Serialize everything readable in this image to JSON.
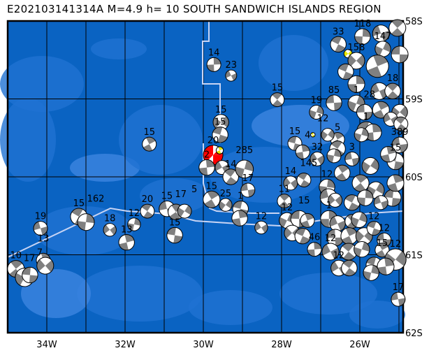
{
  "title": "E202103141314A M=4.9 h=  10 SOUTH SANDWICH ISLANDS REGION",
  "map": {
    "lon_range": [
      -35,
      -24.9
    ],
    "lat_range": [
      -62,
      -58
    ],
    "lon_ticks": [
      {
        "lon": -34,
        "label": "34W"
      },
      {
        "lon": -32,
        "label": "32W"
      },
      {
        "lon": -30,
        "label": "30W"
      },
      {
        "lon": -28,
        "label": "28W"
      },
      {
        "lon": -26,
        "label": "26W"
      }
    ],
    "lat_ticks": [
      {
        "lat": -58,
        "label": "58S"
      },
      {
        "lat": -59,
        "label": "59S"
      },
      {
        "lat": -60,
        "label": "60S"
      },
      {
        "lat": -61,
        "label": "61S"
      },
      {
        "lat": -62,
        "label": "62S"
      }
    ],
    "grid_lons": [
      -34,
      -33,
      -32,
      -31,
      -30,
      -29,
      -28,
      -27,
      -26,
      -25
    ],
    "grid_lats": [
      -59,
      -60,
      -61
    ],
    "colors": {
      "ocean": "#0a63c2",
      "ocean_mid": "#1f72d2",
      "ocean_light": "#3c84e0",
      "plate_boundary": "#c8d4f4",
      "compression": "#808080",
      "main_event": "#ff0000",
      "highlight": "#e6e600"
    }
  },
  "events": [
    {
      "lon": -29.75,
      "lat": -59.72,
      "mag": 6.5,
      "label": "20",
      "type": "main"
    },
    {
      "lon": -29.58,
      "lat": -59.66,
      "mag": 4.3,
      "label": "",
      "type": "highlight"
    },
    {
      "lon": -26.3,
      "lat": -58.42,
      "mag": 4.5,
      "label": "",
      "type": "highlight"
    },
    {
      "lon": -27.2,
      "lat": -59.46,
      "mag": 3.8,
      "label": "",
      "type": "highlight"
    },
    {
      "lon": -29.73,
      "lat": -58.56,
      "mag": 5.5,
      "label": "14"
    },
    {
      "lon": -29.29,
      "lat": -58.7,
      "mag": 5.0,
      "label": "23"
    },
    {
      "lon": -28.11,
      "lat": -59.01,
      "mag": 5.5,
      "label": "15"
    },
    {
      "lon": -27.11,
      "lat": -59.17,
      "mag": 5.5,
      "label": "19"
    },
    {
      "lon": -26.66,
      "lat": -59.05,
      "mag": 5.8,
      "label": "85"
    },
    {
      "lon": -31.38,
      "lat": -59.58,
      "mag": 5.5,
      "label": "15"
    },
    {
      "lon": -29.55,
      "lat": -59.3,
      "mag": 5.8,
      "label": "15"
    },
    {
      "lon": -29.57,
      "lat": -59.46,
      "mag": 5.8,
      "label": "15"
    },
    {
      "lon": -29.91,
      "lat": -59.88,
      "mag": 5.8,
      "label": "2"
    },
    {
      "lon": -29.52,
      "lat": -59.88,
      "mag": 5.5,
      "label": ""
    },
    {
      "lon": -29.3,
      "lat": -60.0,
      "mag": 5.8,
      "label": "14"
    },
    {
      "lon": -28.95,
      "lat": -59.9,
      "mag": 6.2,
      "label": "285"
    },
    {
      "lon": -28.86,
      "lat": -60.17,
      "mag": 5.5,
      "label": "17"
    },
    {
      "lon": -29.79,
      "lat": -60.29,
      "mag": 6.0,
      "label": "15"
    },
    {
      "lon": -29.43,
      "lat": -60.36,
      "mag": 5.3,
      "label": "25"
    },
    {
      "lon": -29.05,
      "lat": -60.41,
      "mag": 5.8,
      "label": "1"
    },
    {
      "lon": -29.07,
      "lat": -60.53,
      "mag": 5.8,
      "label": ""
    },
    {
      "lon": -28.52,
      "lat": -60.65,
      "mag": 5.3,
      "label": "12"
    },
    {
      "lon": -31.43,
      "lat": -60.44,
      "mag": 5.5,
      "label": "20"
    },
    {
      "lon": -31.77,
      "lat": -60.61,
      "mag": 5.3,
      "label": "12"
    },
    {
      "lon": -30.93,
      "lat": -60.41,
      "mag": 5.8,
      "label": "15"
    },
    {
      "lon": -30.7,
      "lat": -60.45,
      "mag": 5.8,
      "label": "17"
    },
    {
      "lon": -30.48,
      "lat": -60.44,
      "mag": 5.5,
      "label": "5"
    },
    {
      "lon": -30.73,
      "lat": -60.75,
      "mag": 5.8,
      "label": "15"
    },
    {
      "lon": -31.96,
      "lat": -60.84,
      "mag": 5.8,
      "label": "13"
    },
    {
      "lon": -32.39,
      "lat": -60.68,
      "mag": 5.3,
      "label": "18"
    },
    {
      "lon": -33.18,
      "lat": -60.51,
      "mag": 6.0,
      "label": "15"
    },
    {
      "lon": -33.0,
      "lat": -60.58,
      "mag": 6.0,
      "label": "162"
    },
    {
      "lon": -34.16,
      "lat": -60.66,
      "mag": 5.5,
      "label": "19"
    },
    {
      "lon": -34.79,
      "lat": -61.18,
      "mag": 6.0,
      "label": "10"
    },
    {
      "lon": -34.57,
      "lat": -61.29,
      "mag": 6.3,
      "label": "17"
    },
    {
      "lon": -34.43,
      "lat": -61.26,
      "mag": 5.8,
      "label": "7"
    },
    {
      "lon": -34.09,
      "lat": -61.07,
      "mag": 5.5,
      "label": "13"
    },
    {
      "lon": -34.04,
      "lat": -61.14,
      "mag": 6.0,
      "label": ""
    },
    {
      "lon": -26.55,
      "lat": -58.3,
      "mag": 5.8,
      "label": "33"
    },
    {
      "lon": -25.93,
      "lat": -58.2,
      "mag": 5.8,
      "label": "118"
    },
    {
      "lon": -25.46,
      "lat": -58.16,
      "mag": 6.0,
      "label": ""
    },
    {
      "lon": -25.04,
      "lat": -58.09,
      "mag": 6.0,
      "label": ""
    },
    {
      "lon": -25.41,
      "lat": -58.36,
      "mag": 5.8,
      "label": "147"
    },
    {
      "lon": -24.98,
      "lat": -58.43,
      "mag": 6.0,
      "label": ""
    },
    {
      "lon": -25.55,
      "lat": -58.58,
      "mag": 7.0,
      "label": ""
    },
    {
      "lon": -26.09,
      "lat": -58.51,
      "mag": 6.0,
      "label": "158"
    },
    {
      "lon": -26.36,
      "lat": -58.65,
      "mag": 5.8,
      "label": ""
    },
    {
      "lon": -26.09,
      "lat": -58.81,
      "mag": 6.0,
      "label": ""
    },
    {
      "lon": -25.5,
      "lat": -58.9,
      "mag": 6.0,
      "label": ""
    },
    {
      "lon": -25.16,
      "lat": -58.9,
      "mag": 5.8,
      "label": "18"
    },
    {
      "lon": -26.09,
      "lat": -59.06,
      "mag": 6.0,
      "label": "1"
    },
    {
      "lon": -25.88,
      "lat": -59.17,
      "mag": 5.8,
      "label": "28"
    },
    {
      "lon": -25.46,
      "lat": -59.14,
      "mag": 6.0,
      "label": ""
    },
    {
      "lon": -24.98,
      "lat": -59.17,
      "mag": 5.8,
      "label": ""
    },
    {
      "lon": -25.84,
      "lat": -59.41,
      "mag": 6.3,
      "label": "1"
    },
    {
      "lon": -25.66,
      "lat": -59.43,
      "mag": 6.0,
      "label": ""
    },
    {
      "lon": -25.21,
      "lat": -59.26,
      "mag": 5.5,
      "label": ""
    },
    {
      "lon": -24.95,
      "lat": -59.32,
      "mag": 5.5,
      "label": ""
    },
    {
      "lon": -25.96,
      "lat": -59.46,
      "mag": 5.5,
      "label": ""
    },
    {
      "lon": -24.98,
      "lat": -59.59,
      "mag": 5.8,
      "label": "389"
    },
    {
      "lon": -26.57,
      "lat": -59.52,
      "mag": 5.5,
      "label": "5"
    },
    {
      "lon": -26.82,
      "lat": -59.46,
      "mag": 5.3,
      "label": "12"
    },
    {
      "lon": -27.66,
      "lat": -59.57,
      "mag": 5.5,
      "label": "15"
    },
    {
      "lon": -27.46,
      "lat": -59.68,
      "mag": 5.5,
      "label": "4"
    },
    {
      "lon": -27.09,
      "lat": -59.77,
      "mag": 5.5,
      "label": "32"
    },
    {
      "lon": -26.57,
      "lat": -59.64,
      "mag": 5.8,
      "label": ""
    },
    {
      "lon": -26.66,
      "lat": -59.73,
      "mag": 5.5,
      "label": ""
    },
    {
      "lon": -26.2,
      "lat": -59.77,
      "mag": 5.5,
      "label": "3"
    },
    {
      "lon": -26.45,
      "lat": -59.95,
      "mag": 5.8,
      "label": ""
    },
    {
      "lon": -25.73,
      "lat": -59.86,
      "mag": 6.0,
      "label": ""
    },
    {
      "lon": -25.09,
      "lat": -59.8,
      "mag": 6.0,
      "label": "15"
    },
    {
      "lon": -25.27,
      "lat": -59.71,
      "mag": 5.8,
      "label": ""
    },
    {
      "lon": -27.77,
      "lat": -60.08,
      "mag": 5.5,
      "label": "14"
    },
    {
      "lon": -27.43,
      "lat": -60.04,
      "mag": 5.5,
      "label": "145"
    },
    {
      "lon": -26.84,
      "lat": -60.13,
      "mag": 5.8,
      "label": "12"
    },
    {
      "lon": -26.8,
      "lat": -60.26,
      "mag": 6.0,
      "label": ""
    },
    {
      "lon": -25.98,
      "lat": -60.08,
      "mag": 6.0,
      "label": ""
    },
    {
      "lon": -25.59,
      "lat": -60.17,
      "mag": 6.0,
      "label": ""
    },
    {
      "lon": -25.16,
      "lat": -60.27,
      "mag": 6.0,
      "label": ""
    },
    {
      "lon": -25.09,
      "lat": -60.08,
      "mag": 6.0,
      "label": ""
    },
    {
      "lon": -26.63,
      "lat": -60.3,
      "mag": 5.5,
      "label": ""
    },
    {
      "lon": -26.2,
      "lat": -60.33,
      "mag": 5.8,
      "label": ""
    },
    {
      "lon": -25.86,
      "lat": -60.27,
      "mag": 5.8,
      "label": ""
    },
    {
      "lon": -25.46,
      "lat": -60.33,
      "mag": 5.5,
      "label": ""
    },
    {
      "lon": -27.93,
      "lat": -60.31,
      "mag": 5.5,
      "label": "11"
    },
    {
      "lon": -27.86,
      "lat": -60.56,
      "mag": 5.8,
      "label": "12"
    },
    {
      "lon": -27.55,
      "lat": -60.54,
      "mag": 6.0,
      "label": "15"
    },
    {
      "lon": -27.34,
      "lat": -60.56,
      "mag": 5.5,
      "label": ""
    },
    {
      "lon": -27.73,
      "lat": -60.72,
      "mag": 5.8,
      "label": ""
    },
    {
      "lon": -27.46,
      "lat": -60.76,
      "mag": 5.8,
      "label": ""
    },
    {
      "lon": -26.79,
      "lat": -60.54,
      "mag": 6.0,
      "label": "1"
    },
    {
      "lon": -26.57,
      "lat": -60.6,
      "mag": 5.8,
      "label": ""
    },
    {
      "lon": -26.2,
      "lat": -60.57,
      "mag": 5.5,
      "label": ""
    },
    {
      "lon": -26.02,
      "lat": -60.55,
      "mag": 5.8,
      "label": ""
    },
    {
      "lon": -26.63,
      "lat": -60.78,
      "mag": 6.0,
      "label": ""
    },
    {
      "lon": -26.27,
      "lat": -60.76,
      "mag": 6.0,
      "label": ""
    },
    {
      "lon": -25.89,
      "lat": -60.76,
      "mag": 6.0,
      "label": ""
    },
    {
      "lon": -25.64,
      "lat": -60.66,
      "mag": 5.5,
      "label": "12"
    },
    {
      "lon": -27.16,
      "lat": -60.93,
      "mag": 5.5,
      "label": "46"
    },
    {
      "lon": -26.75,
      "lat": -60.96,
      "mag": 6.0,
      "label": "12"
    },
    {
      "lon": -26.29,
      "lat": -60.96,
      "mag": 6.0,
      "label": ""
    },
    {
      "lon": -25.95,
      "lat": -60.93,
      "mag": 5.8,
      "label": ""
    },
    {
      "lon": -25.38,
      "lat": -60.81,
      "mag": 5.5,
      "label": "12"
    },
    {
      "lon": -25.43,
      "lat": -60.94,
      "mag": 5.5,
      "label": "15"
    },
    {
      "lon": -25.09,
      "lat": -61.06,
      "mag": 6.8,
      "label": "12"
    },
    {
      "lon": -25.64,
      "lat": -61.13,
      "mag": 5.8,
      "label": ""
    },
    {
      "lon": -25.34,
      "lat": -61.15,
      "mag": 6.0,
      "label": ""
    },
    {
      "lon": -26.54,
      "lat": -61.17,
      "mag": 5.8,
      "label": "12"
    },
    {
      "lon": -26.27,
      "lat": -61.17,
      "mag": 5.8,
      "label": ""
    },
    {
      "lon": -25.71,
      "lat": -61.23,
      "mag": 5.8,
      "label": ""
    },
    {
      "lon": -25.02,
      "lat": -61.57,
      "mag": 5.5,
      "label": "17"
    }
  ]
}
